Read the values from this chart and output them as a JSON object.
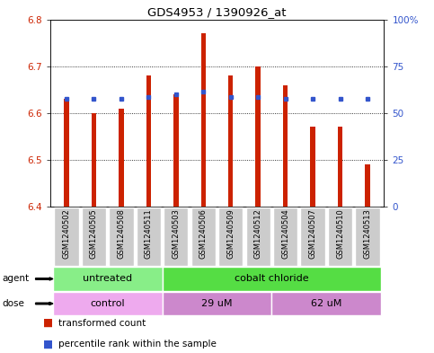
{
  "title": "GDS4953 / 1390926_at",
  "samples": [
    "GSM1240502",
    "GSM1240505",
    "GSM1240508",
    "GSM1240511",
    "GSM1240503",
    "GSM1240506",
    "GSM1240509",
    "GSM1240512",
    "GSM1240504",
    "GSM1240507",
    "GSM1240510",
    "GSM1240513"
  ],
  "red_values": [
    6.63,
    6.6,
    6.61,
    6.68,
    6.64,
    6.77,
    6.68,
    6.7,
    6.66,
    6.57,
    6.57,
    6.49
  ],
  "blue_values": [
    6.63,
    6.63,
    6.63,
    6.635,
    6.64,
    6.645,
    6.635,
    6.635,
    6.63,
    6.63,
    6.63,
    6.63
  ],
  "ymin": 6.4,
  "ymax": 6.8,
  "yticks_left": [
    6.4,
    6.5,
    6.6,
    6.7,
    6.8
  ],
  "ytick_labels_right": [
    "0",
    "25",
    "50",
    "75",
    "100%"
  ],
  "bar_color": "#cc2200",
  "blue_color": "#3355cc",
  "agent_untreated_color": "#88ee88",
  "agent_cobalt_color": "#55dd44",
  "dose_control_color": "#eeaaee",
  "dose_um_color": "#cc88cc",
  "label_bg_color": "#cccccc",
  "legend_red": "transformed count",
  "legend_blue": "percentile rank within the sample",
  "bar_width": 0.18,
  "plot_bg": "#ffffff"
}
